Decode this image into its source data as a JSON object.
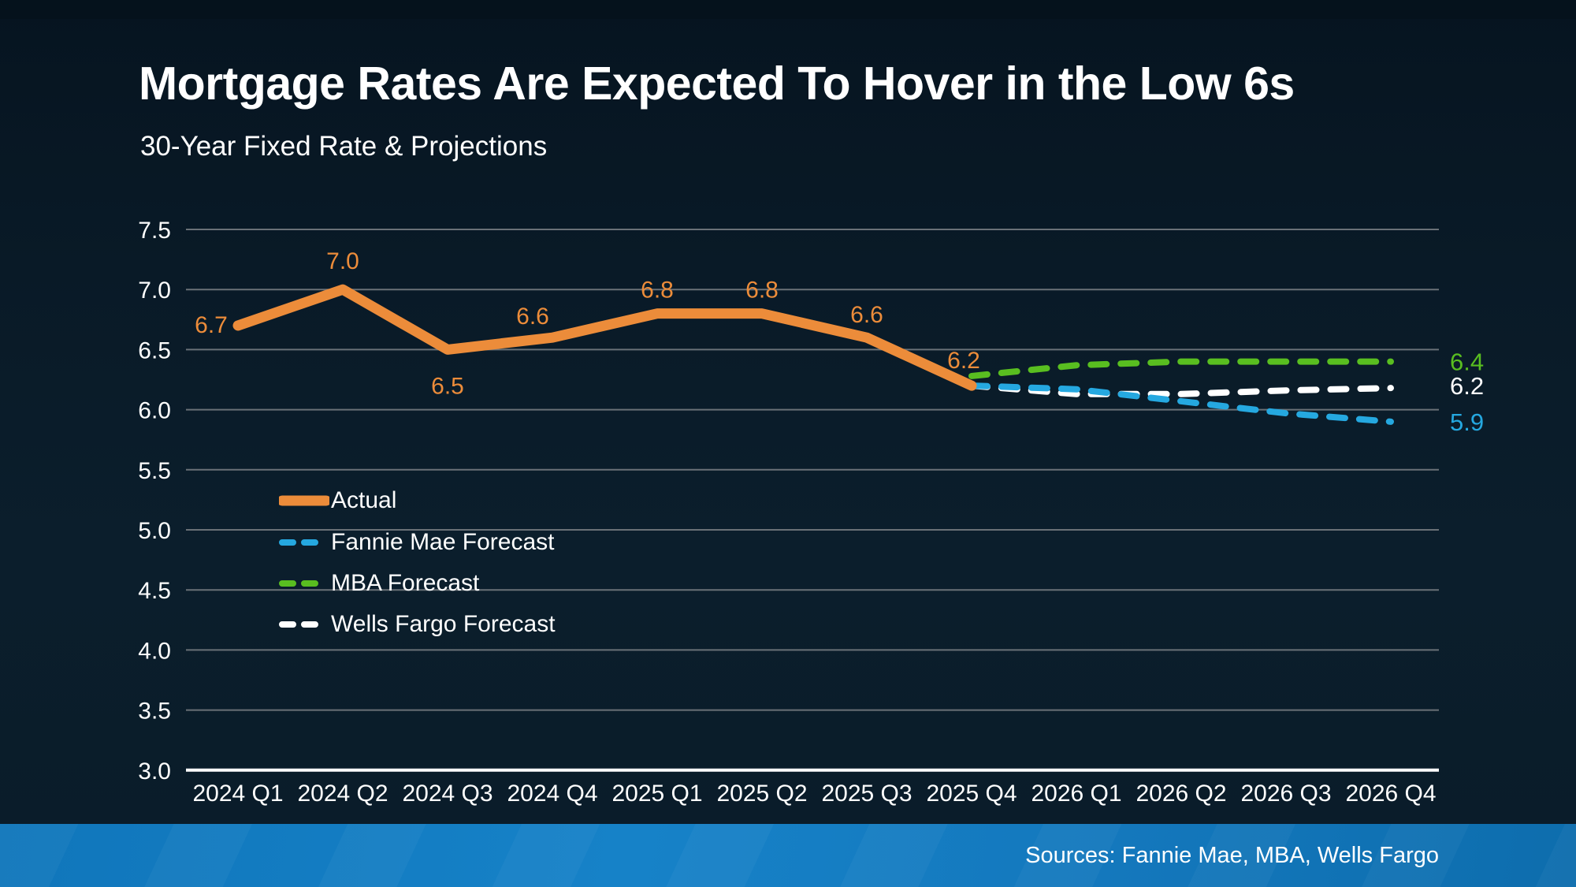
{
  "slide": {
    "title": "Mortgage Rates Are Expected To Hover in the Low 6s",
    "subtitle": "30-Year Fixed Rate & Projections",
    "source": "Sources: Fannie Mae, MBA, Wells Fargo"
  },
  "colors": {
    "background_top": "#05121c",
    "background": "#0b1d2b",
    "footer_bar": "#137dc2",
    "gridline": "#6a7177",
    "axis_line": "#ffffff",
    "text": "#ffffff"
  },
  "chart_data": {
    "type": "line",
    "title": "Mortgage Rates Are Expected To Hover in the Low 6s",
    "subtitle": "30-Year Fixed Rate & Projections",
    "xlabel": "",
    "ylabel": "",
    "categories": [
      "2024 Q1",
      "2024 Q2",
      "2024 Q3",
      "2024 Q4",
      "2025 Q1",
      "2025 Q2",
      "2025 Q3",
      "2025 Q4",
      "2026 Q1",
      "2026 Q2",
      "2026 Q3",
      "2026 Q4"
    ],
    "y_ticks": [
      7.5,
      7.0,
      6.5,
      6.0,
      5.5,
      5.0,
      4.5,
      4.0,
      3.5,
      3.0
    ],
    "ylim": [
      3.0,
      7.5
    ],
    "grid": true,
    "legend_position": "inside-left",
    "source": "Sources: Fannie Mae, MBA, Wells Fargo",
    "series": [
      {
        "name": "Actual",
        "color": "#EC8C3A",
        "dash": false,
        "values": [
          6.7,
          7.0,
          6.5,
          6.6,
          6.8,
          6.8,
          6.6,
          6.2,
          null,
          null,
          null,
          null
        ],
        "point_labels": [
          {
            "i": 0,
            "text": "6.7",
            "dx": -34,
            "dy": 9
          },
          {
            "i": 1,
            "text": "7.0",
            "dx": 0,
            "dy": -26
          },
          {
            "i": 2,
            "text": "6.5",
            "dx": 0,
            "dy": 56
          },
          {
            "i": 3,
            "text": "6.6",
            "dx": -25,
            "dy": -17
          },
          {
            "i": 4,
            "text": "6.8",
            "dx": 0,
            "dy": -20
          },
          {
            "i": 5,
            "text": "6.8",
            "dx": 0,
            "dy": -20
          },
          {
            "i": 6,
            "text": "6.6",
            "dx": 0,
            "dy": -19
          },
          {
            "i": 7,
            "text": "6.2",
            "dx": -10,
            "dy": -22
          }
        ]
      },
      {
        "name": "Fannie Mae Forecast",
        "color": "#25A8E0",
        "dash": true,
        "values": [
          null,
          null,
          null,
          null,
          null,
          null,
          null,
          6.2,
          6.17,
          6.07,
          5.97,
          5.9
        ],
        "end_label": "5.9",
        "end_label_value": 5.9
      },
      {
        "name": "MBA Forecast",
        "color": "#59BE20",
        "dash": true,
        "values": [
          null,
          null,
          null,
          null,
          null,
          null,
          null,
          6.28,
          6.37,
          6.4,
          6.4,
          6.4
        ],
        "end_label": "6.4",
        "end_label_value": 6.4
      },
      {
        "name": "Wells Fargo Forecast",
        "color": "#FFFFFF",
        "dash": true,
        "values": [
          null,
          null,
          null,
          null,
          null,
          null,
          null,
          6.2,
          6.13,
          6.13,
          6.16,
          6.18
        ],
        "end_label": "6.2",
        "end_label_value": 6.2
      }
    ]
  }
}
